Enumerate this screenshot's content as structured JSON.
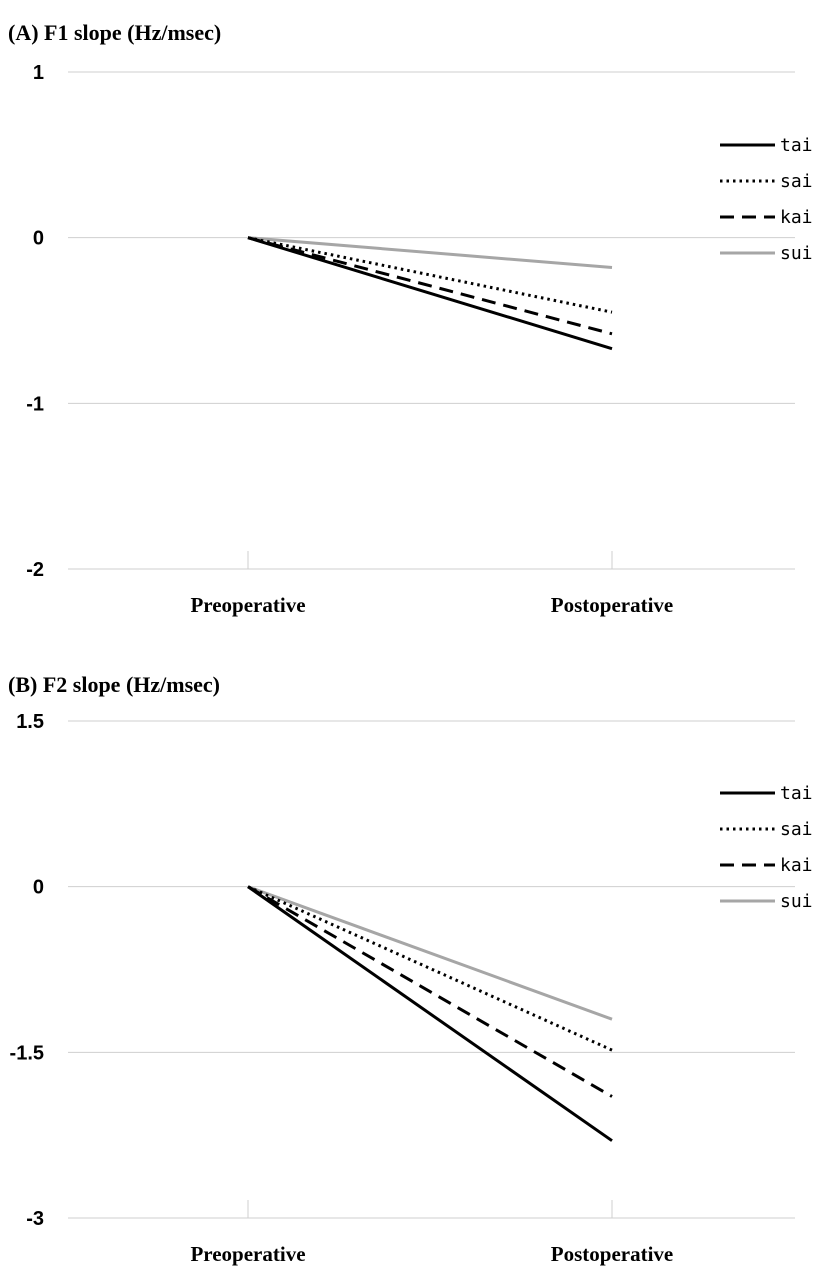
{
  "chart_data": [
    {
      "type": "line",
      "title": "(A) F1 slope (Hz/msec)",
      "categories": [
        "Preoperative",
        "Postoperative"
      ],
      "ylim": [
        -2,
        1
      ],
      "yticks": [
        "1",
        "0",
        "-1",
        "-2"
      ],
      "ytick_values": [
        1,
        0,
        -1,
        -2
      ],
      "grid": true,
      "legend_position": "right",
      "series": [
        {
          "name": "tai",
          "values": [
            0,
            -0.67
          ],
          "color": "#000000",
          "style": "solid"
        },
        {
          "name": "sai",
          "values": [
            0,
            -0.45
          ],
          "color": "#000000",
          "style": "dotted"
        },
        {
          "name": "kai",
          "values": [
            0,
            -0.58
          ],
          "color": "#000000",
          "style": "dashed"
        },
        {
          "name": "sui",
          "values": [
            0,
            -0.18
          ],
          "color": "#a6a6a6",
          "style": "solid"
        }
      ]
    },
    {
      "type": "line",
      "title": "(B) F2 slope (Hz/msec)",
      "categories": [
        "Preoperative",
        "Postoperative"
      ],
      "ylim": [
        -3,
        1.5
      ],
      "yticks": [
        "1.5",
        "0",
        "-1.5",
        "-3"
      ],
      "ytick_values": [
        1.5,
        0,
        -1.5,
        -3
      ],
      "grid": true,
      "legend_position": "right",
      "series": [
        {
          "name": "tai",
          "values": [
            0,
            -2.3
          ],
          "color": "#000000",
          "style": "solid"
        },
        {
          "name": "sai",
          "values": [
            0,
            -1.48
          ],
          "color": "#000000",
          "style": "dotted"
        },
        {
          "name": "kai",
          "values": [
            0,
            -1.9
          ],
          "color": "#000000",
          "style": "dashed"
        },
        {
          "name": "sui",
          "values": [
            0,
            -1.2
          ],
          "color": "#a6a6a6",
          "style": "solid"
        }
      ]
    }
  ]
}
